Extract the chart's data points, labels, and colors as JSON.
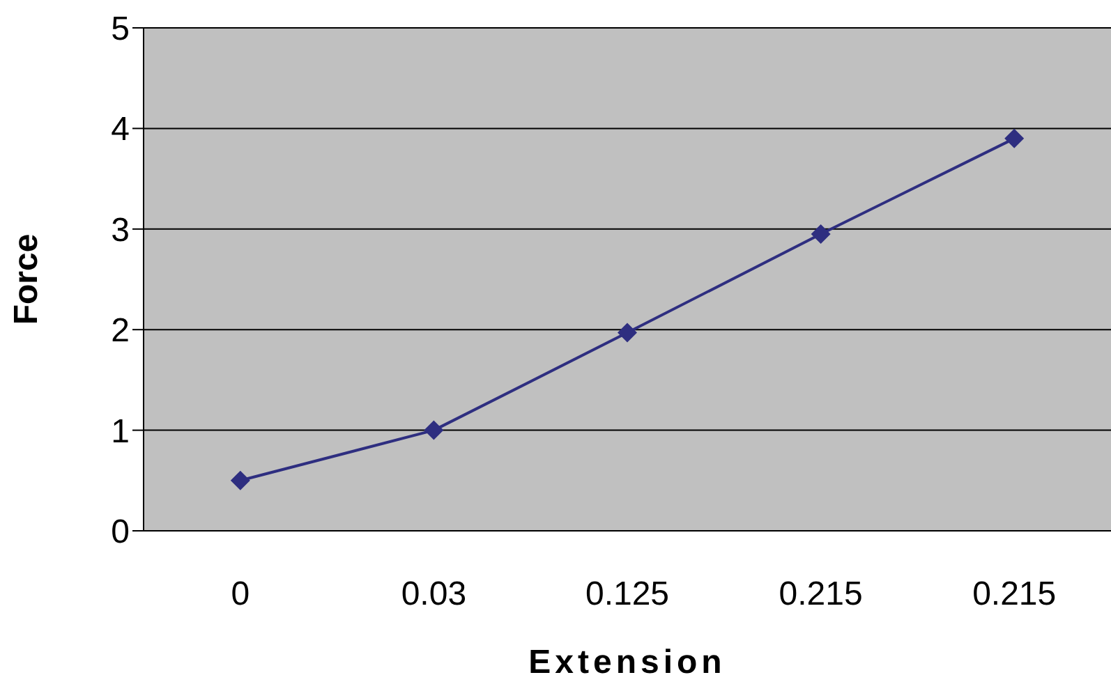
{
  "chart_data": {
    "type": "line",
    "xlabel": "Extension",
    "ylabel": "Force",
    "categories": [
      "0",
      "0.03",
      "0.125",
      "0.215",
      "0.215"
    ],
    "series": [
      {
        "color": "#2e2e80",
        "values": [
          0.5,
          1,
          1.97,
          2.95,
          3.9
        ]
      }
    ],
    "ylim": [
      0,
      5
    ],
    "yticks": [
      0,
      1,
      2,
      3,
      4,
      5
    ],
    "grid": "y",
    "marker": "diamond",
    "line_style": "solid",
    "legend": false
  }
}
